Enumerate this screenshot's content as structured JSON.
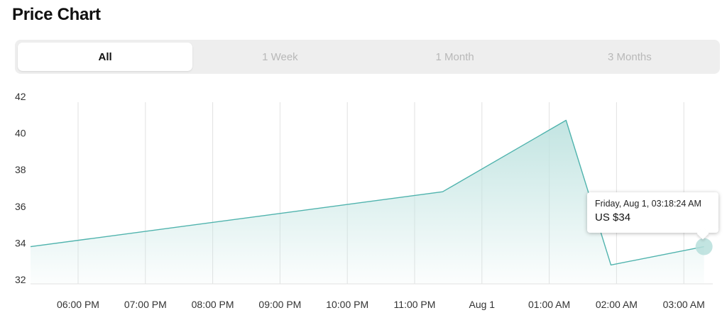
{
  "header": {
    "title": "Price Chart"
  },
  "range_tabs": [
    {
      "label": "All",
      "active": true
    },
    {
      "label": "1 Week",
      "active": false
    },
    {
      "label": "1 Month",
      "active": false
    },
    {
      "label": "3 Months",
      "active": false
    }
  ],
  "tooltip": {
    "date": "Friday, Aug 1, 03:18:24 AM",
    "price": "US $34"
  },
  "colors": {
    "line": "#4fb3ad",
    "fill_top": "#bfe3e0",
    "marker": "#b7dfdc",
    "grid": "#e2e2e2",
    "tick_text": "#333333"
  },
  "chart_data": {
    "type": "area",
    "title": "",
    "xlabel": "",
    "ylabel": "",
    "x_ticks": [
      "06:00 PM",
      "07:00 PM",
      "08:00 PM",
      "09:00 PM",
      "10:00 PM",
      "11:00 PM",
      "Aug 1",
      "01:00 AM",
      "02:00 AM",
      "03:00 AM"
    ],
    "y_ticks": [
      32,
      34,
      36,
      38,
      40,
      42
    ],
    "ylim": [
      32,
      42
    ],
    "grid": true,
    "series": [
      {
        "points": [
          {
            "x": "Jul 31, 05:28 PM",
            "y": 33.8
          },
          {
            "x": "Jul 31, 11:25 PM",
            "y": 36.8
          },
          {
            "x": "Aug 1, 01:15 AM",
            "y": 40.7
          },
          {
            "x": "Aug 1, 01:55 AM",
            "y": 32.8
          },
          {
            "x": "Aug 1, 03:18 AM",
            "y": 33.8
          }
        ]
      }
    ],
    "highlighted_point": {
      "x": "Aug 1, 03:18 AM",
      "y": 34
    }
  }
}
